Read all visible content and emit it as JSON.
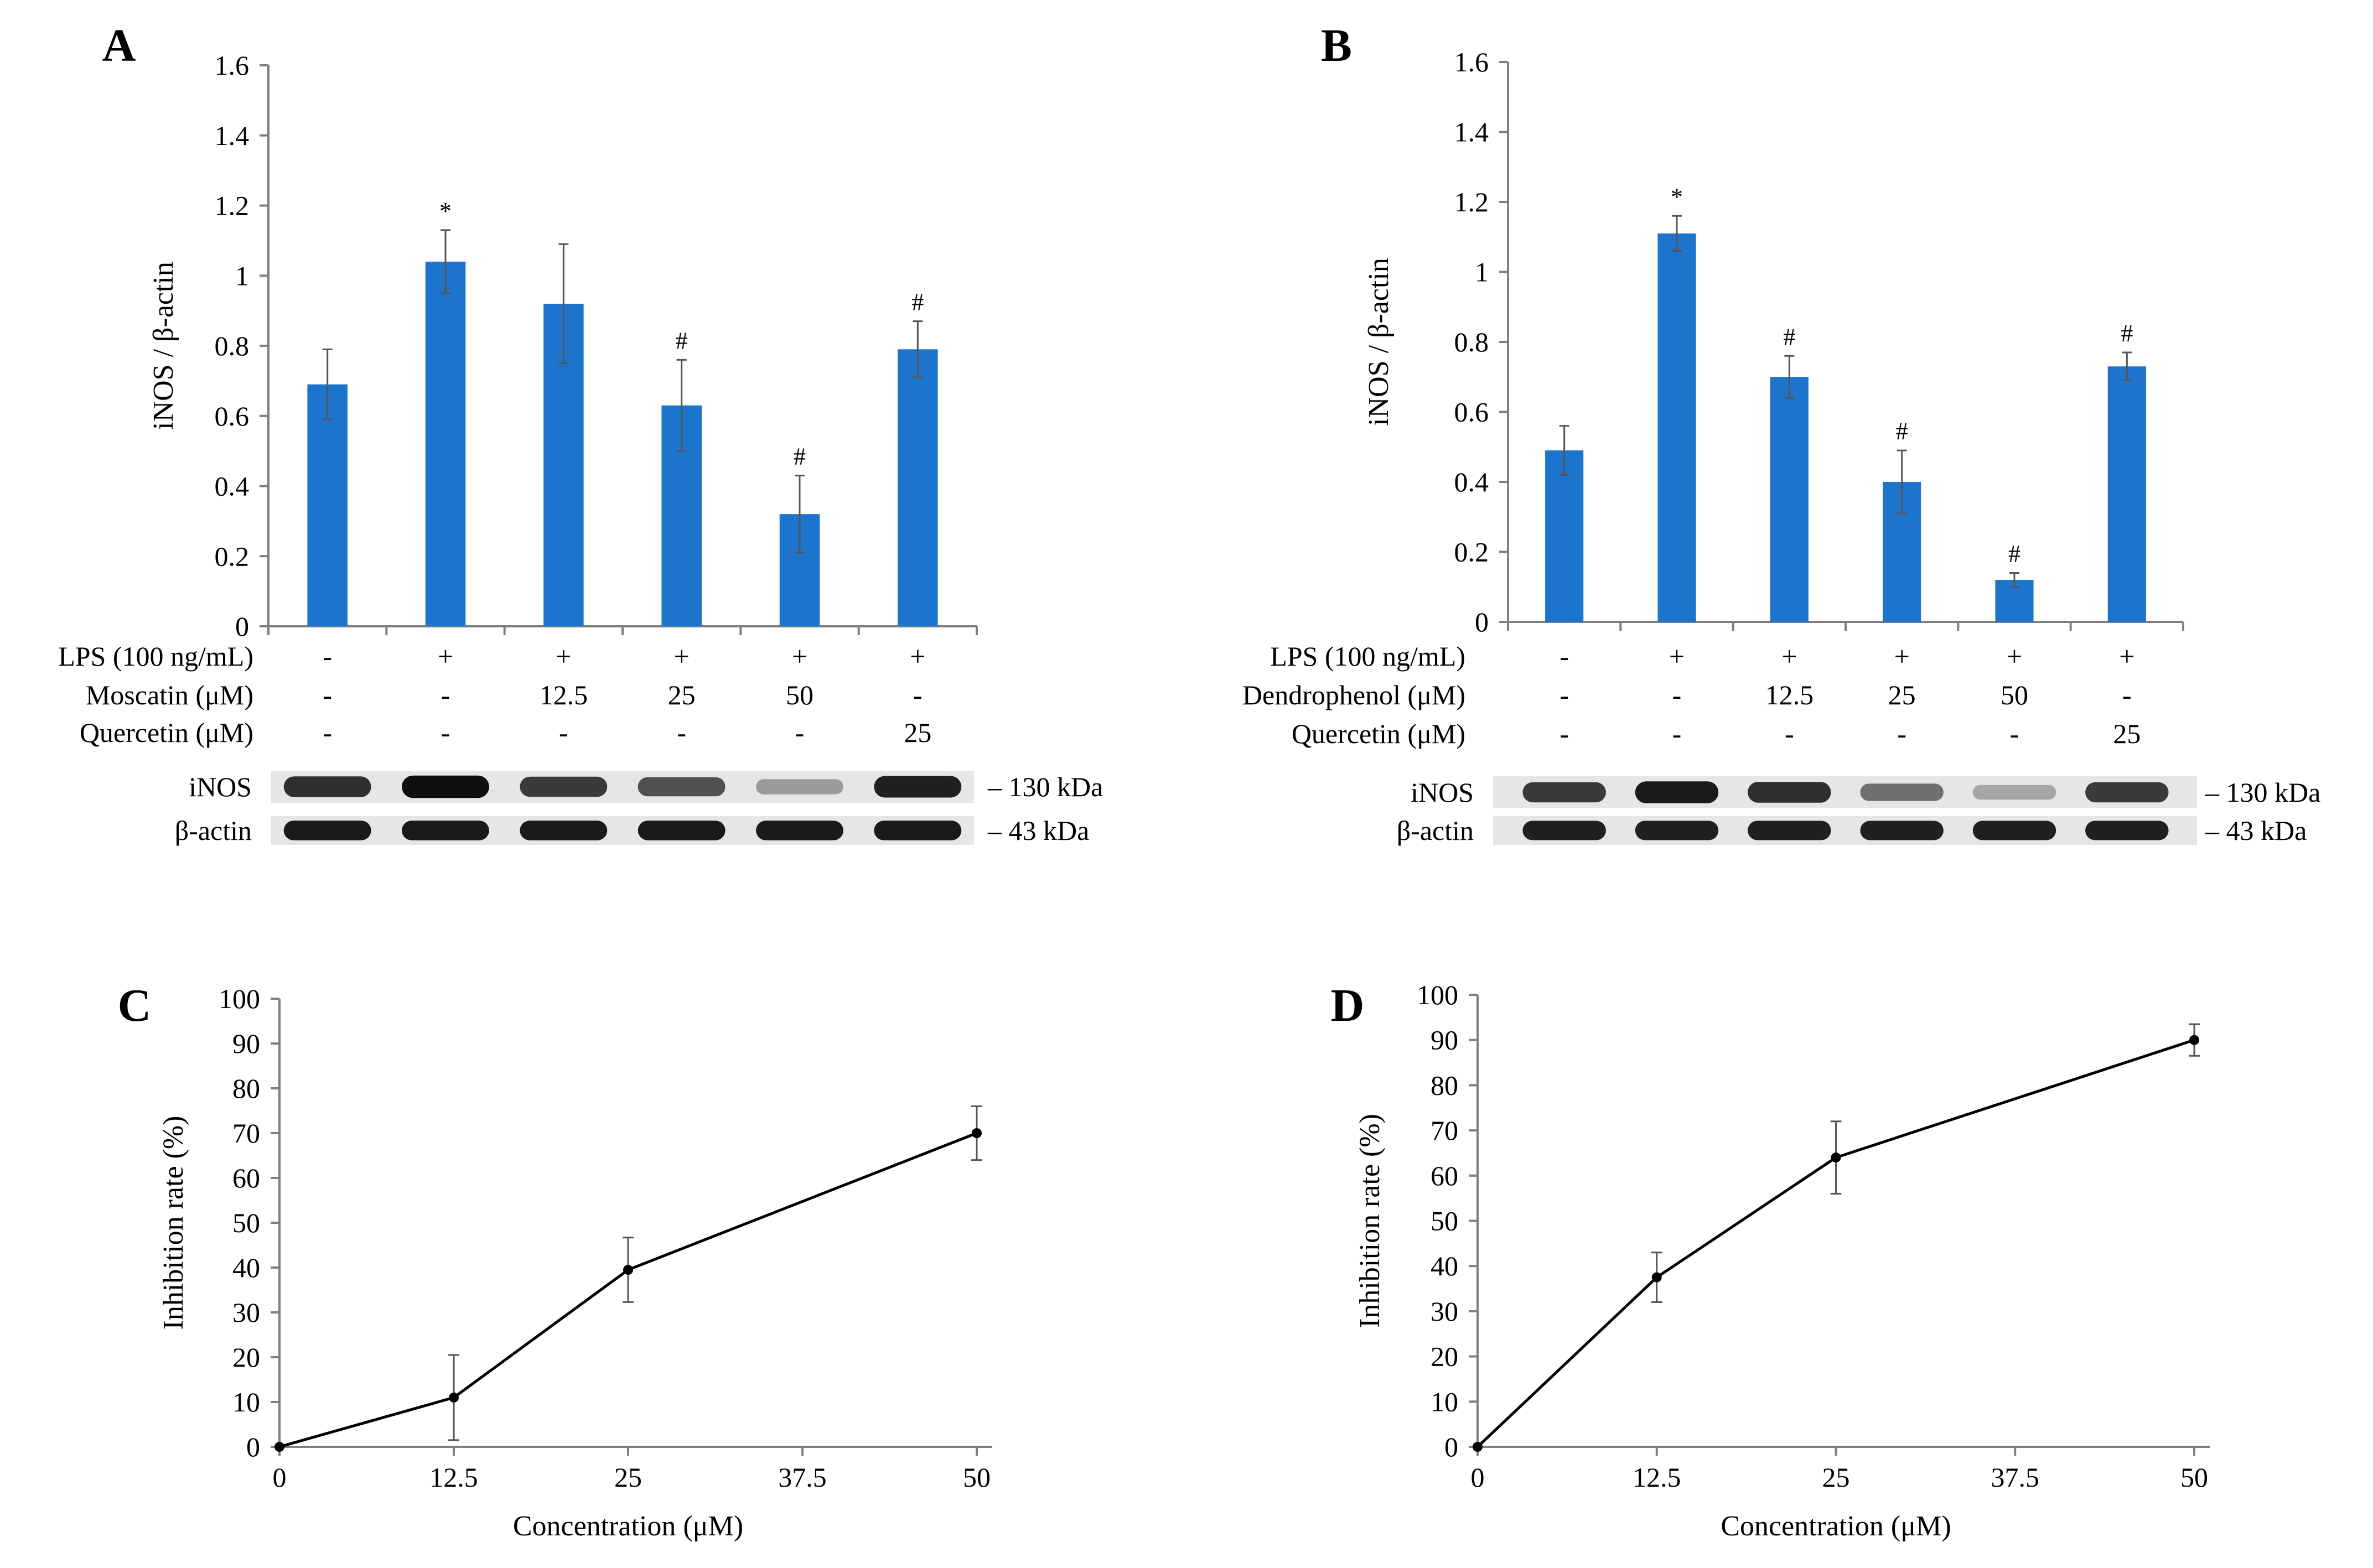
{
  "colors": {
    "bar": "#1c74cc",
    "axis": "#7f7f7f",
    "line": "#000000",
    "band": "#111111"
  },
  "chart_data": [
    {
      "panel": "A",
      "type": "bar",
      "ylabel": "iNOS / β-actin",
      "ylim": [
        0,
        1.6
      ],
      "yticks": [
        "0",
        "0.2",
        "0.4",
        "0.6",
        "0.8",
        "1",
        "1.2",
        "1.4",
        "1.6"
      ],
      "values": [
        0.69,
        1.04,
        0.92,
        0.63,
        0.32,
        0.79
      ],
      "errors": [
        0.1,
        0.09,
        0.17,
        0.13,
        0.11,
        0.08
      ],
      "significance": [
        "",
        "*",
        "",
        "#",
        "#",
        "#"
      ],
      "treatment_rows": [
        {
          "label": "LPS (100 ng/mL)",
          "cells": [
            "-",
            "+",
            "+",
            "+",
            "+",
            "+"
          ]
        },
        {
          "label": "Moscatin (μM)",
          "cells": [
            "-",
            "-",
            "12.5",
            "25",
            "50",
            "-"
          ]
        },
        {
          "label": "Quercetin (μM)",
          "cells": [
            "-",
            "-",
            "-",
            "-",
            "-",
            "25"
          ]
        }
      ],
      "blot": {
        "rows": [
          {
            "label": "iNOS",
            "size": "– 130 kDa",
            "intensity": [
              0.85,
              1.0,
              0.8,
              0.7,
              0.35,
              0.92
            ]
          },
          {
            "label": "β-actin",
            "size": "– 43 kDa",
            "intensity": [
              0.95,
              0.95,
              0.95,
              0.95,
              0.95,
              0.95
            ]
          }
        ]
      }
    },
    {
      "panel": "B",
      "type": "bar",
      "ylabel": "iNOS / β-actin",
      "ylim": [
        0,
        1.6
      ],
      "yticks": [
        "0",
        "0.2",
        "0.4",
        "0.6",
        "0.8",
        "1",
        "1.2",
        "1.4",
        "1.6"
      ],
      "values": [
        0.49,
        1.11,
        0.7,
        0.4,
        0.12,
        0.73
      ],
      "errors": [
        0.07,
        0.05,
        0.06,
        0.09,
        0.02,
        0.04
      ],
      "significance": [
        "",
        "*",
        "#",
        "#",
        "#",
        "#"
      ],
      "treatment_rows": [
        {
          "label": "LPS (100 ng/mL)",
          "cells": [
            "-",
            "+",
            "+",
            "+",
            "+",
            "+"
          ]
        },
        {
          "label": "Dendrophenol (μM)",
          "cells": [
            "-",
            "-",
            "12.5",
            "25",
            "50",
            "-"
          ]
        },
        {
          "label": "Quercetin (μM)",
          "cells": [
            "-",
            "-",
            "-",
            "-",
            "-",
            "25"
          ]
        }
      ],
      "blot": {
        "rows": [
          {
            "label": "iNOS",
            "size": "– 130 kDa",
            "intensity": [
              0.8,
              0.95,
              0.85,
              0.55,
              0.3,
              0.8
            ]
          },
          {
            "label": "β-actin",
            "size": "– 43 kDa",
            "intensity": [
              0.92,
              0.92,
              0.92,
              0.92,
              0.92,
              0.92
            ]
          }
        ]
      }
    },
    {
      "panel": "C",
      "type": "line",
      "xlabel": "Concentration (μM)",
      "ylabel": "Inhibition rate (%)",
      "xlim": [
        0,
        50
      ],
      "ylim": [
        0,
        100
      ],
      "xticks": [
        "0",
        "12.5",
        "25",
        "37.5",
        "50"
      ],
      "yticks": [
        "0",
        "10",
        "20",
        "30",
        "40",
        "50",
        "60",
        "70",
        "80",
        "90",
        "100"
      ],
      "x": [
        0,
        12.5,
        25,
        50
      ],
      "y": [
        0,
        11,
        39.5,
        70
      ],
      "errors": [
        0,
        9.5,
        7.2,
        6
      ]
    },
    {
      "panel": "D",
      "type": "line",
      "xlabel": "Concentration (μM)",
      "ylabel": "Inhibition rate (%)",
      "xlim": [
        0,
        50
      ],
      "ylim": [
        0,
        100
      ],
      "xticks": [
        "0",
        "12.5",
        "25",
        "37.5",
        "50"
      ],
      "yticks": [
        "0",
        "10",
        "20",
        "30",
        "40",
        "50",
        "60",
        "70",
        "80",
        "90",
        "100"
      ],
      "x": [
        0,
        12.5,
        25,
        50
      ],
      "y": [
        0,
        37.5,
        64,
        90
      ],
      "errors": [
        0,
        5.5,
        8,
        3.5
      ]
    }
  ]
}
